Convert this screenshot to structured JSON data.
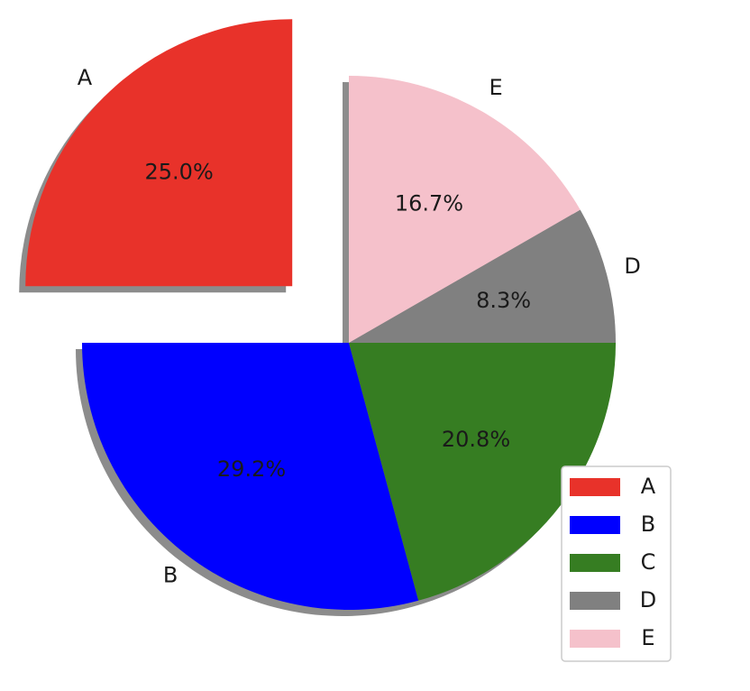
{
  "chart_data": {
    "type": "pie",
    "categories": [
      "A",
      "B",
      "C",
      "D",
      "E"
    ],
    "values": [
      25.0,
      29.2,
      20.8,
      8.3,
      16.7
    ],
    "value_labels": [
      "25.0%",
      "29.2%",
      "20.8%",
      "8.3%",
      "16.7%"
    ],
    "colors": [
      "#e8322a",
      "#0000ff",
      "#367d22",
      "#808080",
      "#f5c1cb"
    ],
    "shadow": true,
    "legend": "lower right"
  }
}
